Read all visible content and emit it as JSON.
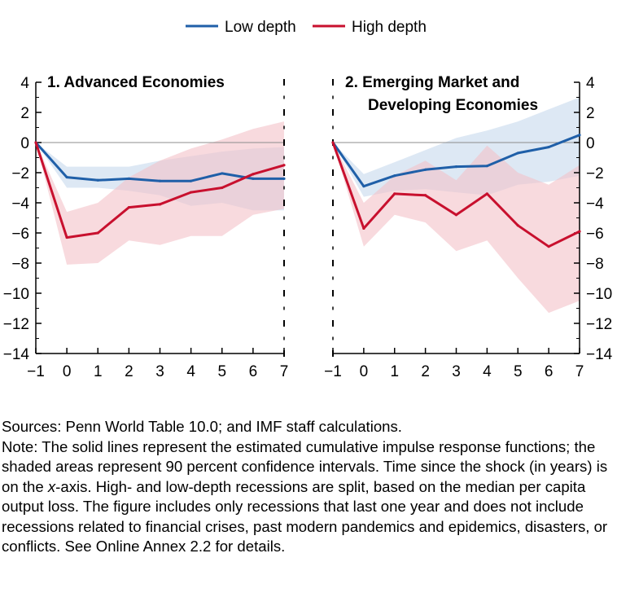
{
  "legend": [
    {
      "label": "Low depth",
      "color": "#1f5fa8"
    },
    {
      "label": "High depth",
      "color": "#c8102e"
    }
  ],
  "colors": {
    "low_band": "#c6d9ec",
    "high_band": "#f3c2c8",
    "zero_line": "#8c8c8c"
  },
  "chart_data": [
    {
      "type": "line",
      "title_lines": [
        "1. Advanced Economies"
      ],
      "y_axis_side": "left",
      "x": [
        -1,
        0,
        1,
        2,
        3,
        4,
        5,
        6,
        7
      ],
      "ylim": [
        -14,
        4
      ],
      "yticks": [
        4,
        2,
        0,
        -2,
        -4,
        -6,
        -8,
        -10,
        -12,
        -14
      ],
      "ytick_labels": [
        "4",
        "2",
        "0",
        "−2",
        "−4",
        "−6",
        "−8",
        "−10",
        "−12",
        "−14"
      ],
      "xtick_labels": [
        "−1",
        "0",
        "1",
        "2",
        "3",
        "4",
        "5",
        "6",
        "7"
      ],
      "series": [
        {
          "name": "Low depth",
          "values": [
            0,
            -2.3,
            -2.5,
            -2.4,
            -2.55,
            -2.55,
            -2.05,
            -2.4,
            -2.4
          ],
          "band_upper": [
            0,
            -1.6,
            -1.6,
            -1.6,
            -1.2,
            -0.9,
            -0.6,
            -0.4,
            -0.3
          ],
          "band_lower": [
            0,
            -3.0,
            -3.0,
            -3.2,
            -3.5,
            -4.2,
            -4.0,
            -4.5,
            -4.5
          ]
        },
        {
          "name": "High depth",
          "values": [
            0,
            -6.3,
            -6.0,
            -4.3,
            -4.1,
            -3.3,
            -3.0,
            -2.1,
            -1.5
          ],
          "band_upper": [
            0,
            -4.6,
            -4.0,
            -2.3,
            -1.2,
            -0.4,
            0.2,
            0.9,
            1.4
          ],
          "band_lower": [
            0,
            -8.1,
            -8.0,
            -6.5,
            -6.8,
            -6.2,
            -6.2,
            -4.8,
            -4.4
          ]
        }
      ]
    },
    {
      "type": "line",
      "title_lines": [
        "2. Emerging Market and",
        "Developing Economies"
      ],
      "y_axis_side": "right",
      "x": [
        -1,
        0,
        1,
        2,
        3,
        4,
        5,
        6,
        7
      ],
      "ylim": [
        -14,
        4
      ],
      "yticks": [
        4,
        2,
        0,
        -2,
        -4,
        -6,
        -8,
        -10,
        -12,
        -14
      ],
      "ytick_labels": [
        "4",
        "2",
        "0",
        "−2",
        "−4",
        "−6",
        "−8",
        "−10",
        "−12",
        "−14"
      ],
      "xtick_labels": [
        "−1",
        "0",
        "1",
        "2",
        "3",
        "4",
        "5",
        "6",
        "7"
      ],
      "series": [
        {
          "name": "Low depth",
          "values": [
            0,
            -2.9,
            -2.2,
            -1.8,
            -1.6,
            -1.55,
            -0.7,
            -0.3,
            0.5
          ],
          "band_upper": [
            0,
            -2.1,
            -1.3,
            -0.5,
            0.3,
            0.8,
            1.4,
            2.2,
            3.0
          ],
          "band_lower": [
            0,
            -3.6,
            -3.2,
            -3.1,
            -3.3,
            -3.5,
            -2.8,
            -2.6,
            -2.2
          ]
        },
        {
          "name": "High depth",
          "values": [
            0,
            -5.7,
            -3.4,
            -3.5,
            -4.8,
            -3.4,
            -5.5,
            -6.9,
            -5.9
          ],
          "band_upper": [
            0,
            -4.0,
            -2.2,
            -1.2,
            -2.5,
            -0.2,
            -2.0,
            -2.8,
            -1.5
          ],
          "band_lower": [
            0,
            -6.9,
            -4.8,
            -5.3,
            -7.2,
            -6.5,
            -9.0,
            -11.3,
            -10.5
          ]
        }
      ]
    }
  ],
  "notes": {
    "sources": "Sources: Penn World Table 10.0; and IMF staff calculations.",
    "note_before_italic": "Note: The solid lines represent the estimated cumulative impulse response functions; the shaded areas represent 90 percent confidence intervals. Time since the shock (in years) is on the ",
    "note_italic": "x",
    "note_after_italic": "-axis. High- and low-depth recessions are split, based on the median per capita output loss. The figure includes only recessions that last one year and does not include recessions related to financial crises, past modern pandemics and epidemics, disasters, or conflicts. See Online Annex 2.2 for details."
  }
}
